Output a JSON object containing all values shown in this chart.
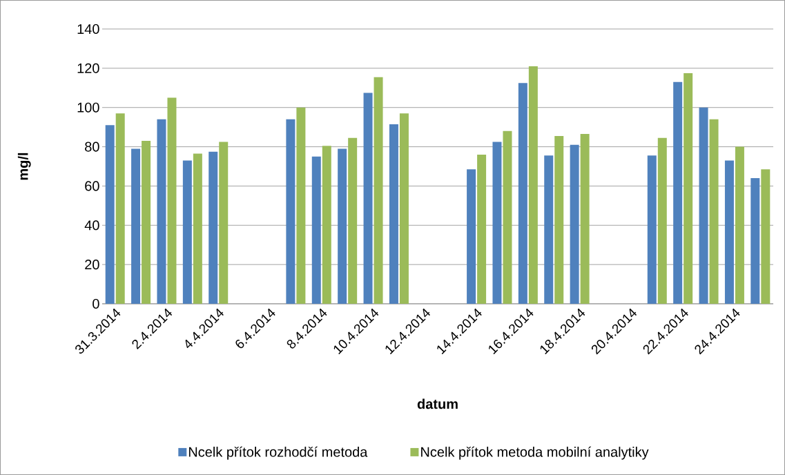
{
  "chart_data": {
    "type": "bar",
    "xlabel": "datum",
    "ylabel": "mg/l",
    "categories": [
      "31.3.2014",
      null,
      "2.4.2014",
      null,
      "4.4.2014",
      null,
      "6.4.2014",
      null,
      "8.4.2014",
      null,
      "10.4.2014",
      null,
      "12.4.2014",
      null,
      "14.4.2014",
      null,
      "16.4.2014",
      null,
      "18.4.2014",
      null,
      "20.4.2014",
      null,
      "22.4.2014",
      null,
      "24.4.2014",
      null
    ],
    "series": [
      {
        "name": "Ncelk přítok rozhodčí metoda",
        "color": "#4f81bd",
        "values": [
          91,
          79,
          94,
          73,
          77.5,
          null,
          null,
          94,
          75,
          79,
          107.5,
          91.5,
          null,
          null,
          68.5,
          82.5,
          112.5,
          75.5,
          81,
          null,
          null,
          75.5,
          113,
          100,
          73,
          64
        ]
      },
      {
        "name": "Ncelk přítok metoda mobilní analytiky",
        "color": "#9bbb59",
        "values": [
          97,
          83,
          105,
          76.5,
          82.5,
          null,
          null,
          100,
          80.5,
          84.5,
          115.5,
          97,
          null,
          null,
          76,
          88,
          121,
          85.5,
          86.5,
          null,
          null,
          84.5,
          117.5,
          94,
          80,
          68.5
        ]
      }
    ],
    "ylim": [
      0,
      140
    ],
    "yticks": [
      0,
      20,
      40,
      60,
      80,
      100,
      120,
      140
    ],
    "grid": "y",
    "legend": "bottom"
  }
}
